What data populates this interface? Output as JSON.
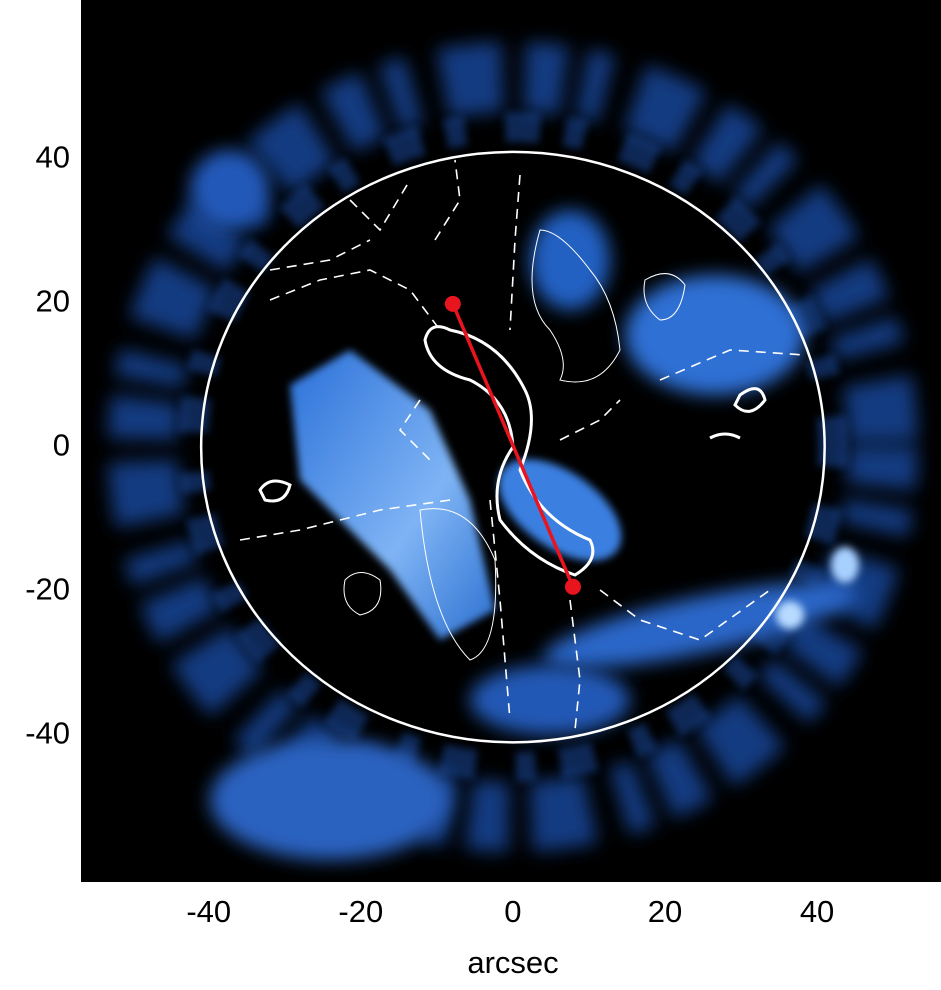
{
  "chart_data": {
    "type": "image",
    "xlabel": "arcsec",
    "xlim": [
      -56.8,
      56.3
    ],
    "ylim": [
      -60.4,
      62.1
    ],
    "xticks": [
      -40,
      -20,
      0,
      20,
      40
    ],
    "yticks": [
      -40,
      -20,
      0,
      20,
      40
    ],
    "circle_radius": 41,
    "circle_color": "#ffffff",
    "line": {
      "color": "#e8141e",
      "x": [
        -7.9,
        7.9
      ],
      "y": [
        19.9,
        -19.4
      ]
    }
  }
}
